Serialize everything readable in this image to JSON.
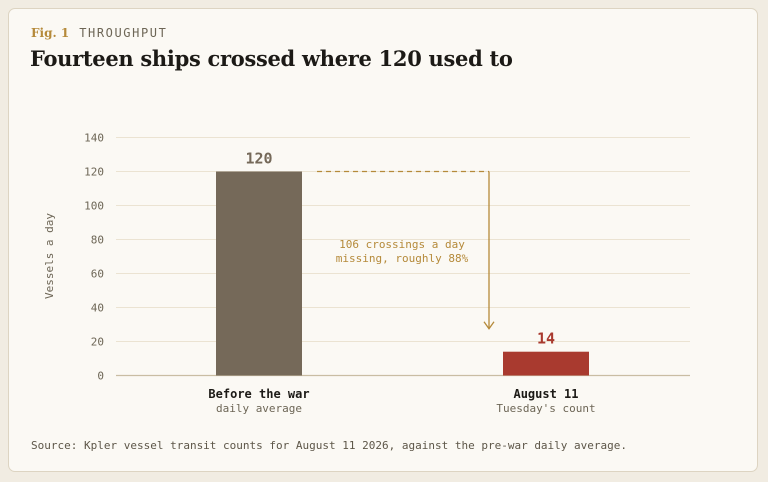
{
  "header": {
    "fig_label": "Fig. 1",
    "kicker": "THROUGHPUT",
    "title": "Fourteen ships crossed where 120 used to"
  },
  "chart_data": {
    "type": "bar",
    "categories": [
      "Before the war",
      "August 11"
    ],
    "category_sublabels": [
      "daily average",
      "Tuesday's count"
    ],
    "values": [
      120,
      14
    ],
    "value_labels": [
      "120",
      "14"
    ],
    "colors": [
      "#756959",
      "#a93a2f"
    ],
    "value_label_colors": [
      "#756959",
      "#a93a2f"
    ],
    "ylabel": "Vessels a day",
    "ylim": [
      0,
      140
    ],
    "yticks": [
      0,
      20,
      40,
      60,
      80,
      100,
      120,
      140
    ],
    "grid": true,
    "annotation": {
      "lines": [
        "106 crossings a day",
        "missing, roughly 88%"
      ],
      "from_value": 120,
      "to_value": 14,
      "color": "#b58a3a"
    }
  },
  "footer": {
    "source": "Source: Kpler vessel transit counts for August 11 2026, against the pre-war daily average."
  }
}
